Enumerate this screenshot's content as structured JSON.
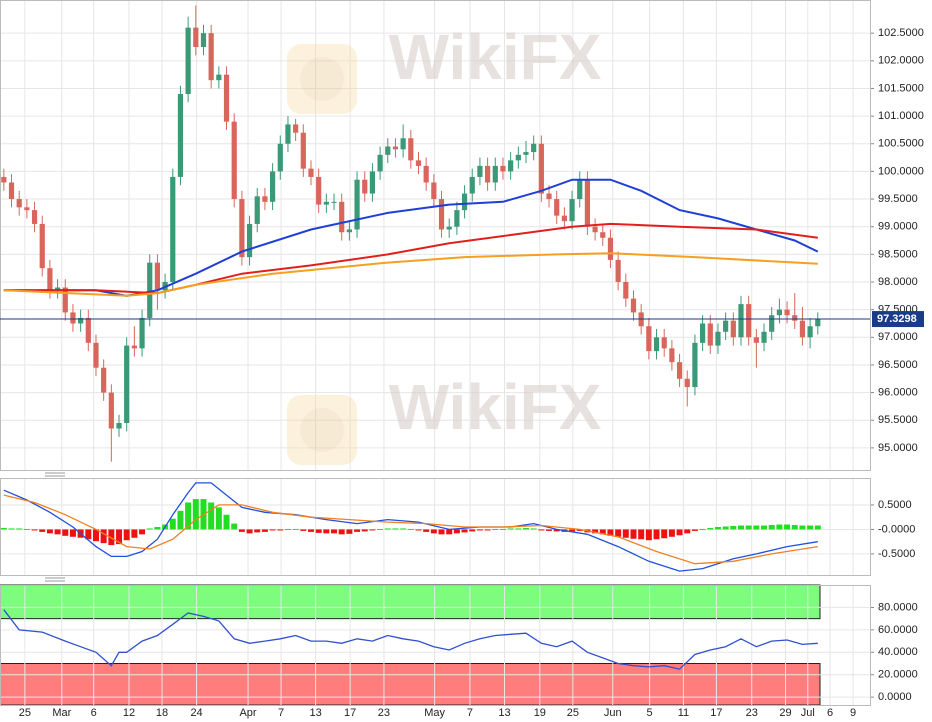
{
  "watermark": "WikiFX",
  "chart_data": [
    {
      "type": "candlestick",
      "xlim": [
        -0.5,
        112.8
      ],
      "ylim": [
        94.6,
        103.1
      ],
      "yticks": [
        {
          "value": 95,
          "label": "95.0000"
        },
        {
          "value": 95.5,
          "label": "95.5000"
        },
        {
          "value": 96,
          "label": "96.0000"
        },
        {
          "value": 96.5,
          "label": "96.5000"
        },
        {
          "value": 97,
          "label": "97.0000"
        },
        {
          "value": 97.5,
          "label": "97.5000"
        },
        {
          "value": 98,
          "label": "98.0000"
        },
        {
          "value": 98.5,
          "label": "98.5000"
        },
        {
          "value": 99,
          "label": "99.0000"
        },
        {
          "value": 99.5,
          "label": "99.5000"
        },
        {
          "value": 100,
          "label": "100.0000"
        },
        {
          "value": 100.5,
          "label": "100.5000"
        },
        {
          "value": 101,
          "label": "101.0000"
        },
        {
          "value": 101.5,
          "label": "101.5000"
        },
        {
          "value": 102,
          "label": "102.0000"
        },
        {
          "value": 102.5,
          "label": "102.5000"
        }
      ],
      "grid": true,
      "up_color": "#3a9a78",
      "down_color": "#d9665c",
      "open": [
        99.9,
        99.8,
        99.5,
        99.35,
        99.3,
        99.05,
        98.25,
        97.85,
        97.9,
        97.45,
        97.25,
        97.35,
        96.9,
        96.45,
        96.0,
        95.35,
        95.45,
        96.85,
        96.8,
        97.35,
        98.35,
        97.85,
        98.0,
        99.9,
        101.4,
        102.6,
        102.25,
        102.5,
        101.65,
        101.75,
        100.9,
        99.5,
        98.45,
        99.05,
        99.55,
        99.45,
        100.0,
        100.5,
        100.85,
        100.7,
        100.05,
        99.9,
        99.4,
        99.45,
        99.45,
        98.9,
        98.95,
        99.85,
        99.6,
        100.0,
        100.3,
        100.45,
        100.4,
        100.6,
        100.2,
        100.1,
        99.8,
        99.5,
        98.95,
        99.0,
        99.3,
        99.6,
        99.9,
        100.1,
        99.8,
        100.1,
        100.0,
        100.2,
        100.3,
        100.35,
        100.5,
        99.6,
        99.5,
        99.2,
        99.1,
        99.5,
        99.85,
        99.0,
        98.9,
        98.8,
        98.4,
        98.0,
        97.7,
        97.45,
        97.2,
        96.75,
        97.0,
        96.8,
        96.55,
        96.25,
        96.1,
        96.9,
        97.25,
        96.85,
        97.1,
        97.3,
        97.0,
        97.6,
        97.0,
        96.9,
        97.1,
        97.4,
        97.5,
        97.4,
        97.3,
        97.0,
        97.2
      ],
      "high": [
        100.05,
        99.95,
        99.65,
        99.5,
        99.45,
        99.2,
        98.4,
        98.05,
        98.05,
        97.6,
        97.5,
        97.5,
        97.05,
        96.6,
        96.15,
        95.6,
        97.0,
        97.2,
        97.5,
        98.5,
        98.5,
        98.15,
        100.05,
        101.55,
        102.8,
        103.0,
        102.65,
        102.65,
        101.9,
        101.9,
        101.05,
        99.65,
        99.2,
        99.7,
        99.7,
        100.15,
        100.65,
        101.0,
        100.95,
        100.85,
        100.2,
        100.05,
        99.6,
        99.6,
        99.6,
        99.1,
        100.0,
        100.0,
        100.15,
        100.45,
        100.6,
        100.6,
        100.85,
        100.75,
        100.35,
        100.25,
        99.95,
        99.65,
        99.15,
        99.45,
        99.75,
        100.05,
        100.25,
        100.25,
        100.25,
        100.25,
        100.35,
        100.45,
        100.55,
        100.65,
        100.65,
        99.75,
        99.65,
        99.35,
        99.65,
        100.0,
        100.0,
        99.15,
        99.05,
        98.95,
        98.55,
        98.15,
        97.85,
        97.6,
        97.35,
        97.15,
        97.15,
        96.95,
        96.7,
        96.4,
        97.05,
        97.4,
        97.4,
        97.25,
        97.45,
        97.45,
        97.75,
        97.75,
        97.15,
        97.25,
        97.55,
        97.7,
        97.65,
        97.8,
        97.55,
        97.35,
        97.45
      ],
      "low": [
        99.65,
        99.35,
        99.2,
        99.15,
        98.9,
        98.1,
        97.7,
        97.7,
        97.3,
        97.1,
        97.1,
        96.75,
        96.3,
        95.85,
        94.75,
        95.2,
        95.3,
        96.65,
        96.65,
        97.2,
        97.5,
        97.7,
        97.85,
        99.75,
        101.25,
        102.1,
        102.1,
        101.5,
        101.5,
        100.75,
        99.35,
        98.3,
        98.3,
        98.9,
        99.3,
        99.3,
        99.85,
        100.35,
        100.55,
        99.9,
        99.75,
        99.25,
        99.25,
        99.3,
        98.75,
        98.75,
        98.8,
        99.45,
        99.45,
        99.85,
        100.15,
        100.25,
        100.25,
        100.05,
        99.95,
        99.65,
        99.35,
        98.8,
        98.8,
        98.85,
        99.15,
        99.45,
        99.75,
        99.65,
        99.65,
        99.85,
        99.85,
        100.05,
        100.15,
        100.2,
        99.45,
        99.35,
        99.05,
        98.95,
        98.95,
        99.35,
        98.85,
        98.75,
        98.65,
        98.25,
        97.85,
        97.55,
        97.3,
        97.05,
        96.6,
        96.6,
        96.65,
        96.4,
        96.1,
        95.75,
        95.95,
        96.75,
        96.7,
        96.7,
        96.95,
        96.85,
        96.85,
        96.85,
        96.45,
        96.75,
        96.95,
        97.25,
        97.25,
        97.15,
        96.85,
        96.8,
        97.05
      ],
      "close": [
        99.8,
        99.5,
        99.35,
        99.3,
        99.05,
        98.25,
        97.85,
        97.9,
        97.45,
        97.25,
        97.35,
        96.9,
        96.45,
        96.0,
        95.35,
        95.45,
        96.85,
        96.8,
        97.35,
        98.35,
        97.85,
        98.0,
        99.9,
        101.4,
        102.6,
        102.25,
        102.5,
        101.65,
        101.75,
        100.9,
        99.5,
        98.45,
        99.05,
        99.55,
        99.45,
        100.0,
        100.5,
        100.85,
        100.7,
        100.05,
        99.9,
        99.4,
        99.45,
        99.45,
        98.9,
        98.95,
        99.85,
        99.6,
        100.0,
        100.3,
        100.45,
        100.4,
        100.6,
        100.2,
        100.1,
        99.8,
        99.5,
        98.95,
        99.0,
        99.3,
        99.6,
        99.9,
        100.1,
        99.8,
        100.1,
        100.0,
        100.2,
        100.3,
        100.35,
        100.5,
        99.6,
        99.5,
        99.2,
        99.1,
        99.5,
        99.85,
        99.0,
        98.9,
        98.8,
        98.4,
        98.0,
        97.7,
        97.45,
        97.2,
        96.75,
        97.0,
        96.8,
        96.55,
        96.25,
        96.1,
        96.9,
        97.25,
        96.85,
        97.1,
        97.3,
        97.0,
        97.6,
        97.0,
        96.9,
        97.1,
        97.4,
        97.5,
        97.4,
        97.3,
        97.0,
        97.2,
        97.33
      ],
      "lines": [
        {
          "color": "#1f3fd6",
          "x": [
            0,
            12,
            16,
            20,
            25,
            31,
            40,
            50,
            58,
            65,
            70,
            74,
            79,
            83,
            88,
            93,
            98,
            103,
            106
          ],
          "values": [
            97.85,
            97.85,
            97.75,
            97.85,
            98.15,
            98.55,
            98.95,
            99.25,
            99.4,
            99.45,
            99.65,
            99.85,
            99.85,
            99.65,
            99.3,
            99.15,
            98.95,
            98.75,
            98.55
          ]
        },
        {
          "color": "#e0201c",
          "x": [
            0,
            12,
            20,
            25,
            31,
            40,
            50,
            58,
            66,
            74,
            79,
            88,
            98,
            106
          ],
          "values": [
            97.85,
            97.85,
            97.8,
            97.95,
            98.15,
            98.3,
            98.5,
            98.7,
            98.85,
            99.0,
            99.05,
            99.0,
            98.95,
            98.8
          ]
        },
        {
          "color": "#f5a020",
          "x": [
            0,
            16,
            20,
            25,
            35,
            50,
            60,
            72,
            79,
            90,
            106
          ],
          "values": [
            97.85,
            97.75,
            97.8,
            97.95,
            98.15,
            98.35,
            98.45,
            98.5,
            98.52,
            98.45,
            98.33
          ]
        }
      ],
      "last_price": 97.3298,
      "last_price_color": "#1a3a8a"
    },
    {
      "type": "macd",
      "xlim": [
        -0.5,
        112.8
      ],
      "ylim": [
        -0.93,
        1.05
      ],
      "yticks": [
        {
          "value": 0.5,
          "label": "0.5000"
        },
        {
          "value": 0,
          "label": "-0.0000"
        },
        {
          "value": -0.5,
          "label": "-0.5000"
        }
      ],
      "up_color": "#22dd22",
      "down_color": "#ee1111",
      "histogram": [
        0.03,
        0.02,
        0.02,
        0.01,
        -0.02,
        -0.05,
        -0.08,
        -0.1,
        -0.13,
        -0.15,
        -0.17,
        -0.2,
        -0.24,
        -0.28,
        -0.32,
        -0.3,
        -0.22,
        -0.17,
        -0.1,
        0.02,
        0.05,
        0.1,
        0.22,
        0.38,
        0.55,
        0.62,
        0.62,
        0.55,
        0.45,
        0.3,
        0.12,
        -0.05,
        -0.08,
        -0.06,
        -0.05,
        -0.02,
        -0.02,
        0.01,
        0.01,
        -0.03,
        -0.05,
        -0.07,
        -0.08,
        -0.08,
        -0.1,
        -0.09,
        -0.05,
        -0.04,
        -0.02,
        0.01,
        0.02,
        0.02,
        0.02,
        0.01,
        -0.02,
        -0.05,
        -0.08,
        -0.1,
        -0.1,
        -0.08,
        -0.06,
        -0.04,
        -0.02,
        -0.01,
        0.01,
        0.01,
        0.02,
        0.02,
        0.03,
        0.02,
        -0.02,
        -0.03,
        -0.04,
        -0.05,
        -0.04,
        -0.03,
        -0.06,
        -0.08,
        -0.1,
        -0.13,
        -0.15,
        -0.17,
        -0.19,
        -0.2,
        -0.22,
        -0.2,
        -0.18,
        -0.15,
        -0.12,
        -0.08,
        -0.03,
        0.01,
        0.03,
        0.05,
        0.06,
        0.07,
        0.08,
        0.08,
        0.08,
        0.08,
        0.09,
        0.1,
        0.1,
        0.09,
        0.08,
        0.08,
        0.08
      ],
      "lines": [
        {
          "color": "#2050e0",
          "x": [
            0,
            3,
            6,
            9,
            12,
            14,
            16,
            18,
            20,
            22,
            24,
            25,
            27,
            29,
            31,
            34,
            38,
            42,
            46,
            50,
            54,
            58,
            62,
            66,
            69,
            72,
            76,
            80,
            84,
            88,
            91,
            95,
            98,
            102,
            106
          ],
          "values": [
            0.8,
            0.6,
            0.35,
            0.05,
            -0.35,
            -0.55,
            -0.55,
            -0.45,
            -0.2,
            0.3,
            0.75,
            0.95,
            0.95,
            0.7,
            0.45,
            0.35,
            0.3,
            0.2,
            0.12,
            0.2,
            0.15,
            0.0,
            0.05,
            0.05,
            0.12,
            0.0,
            -0.1,
            -0.35,
            -0.65,
            -0.85,
            -0.8,
            -0.6,
            -0.5,
            -0.35,
            -0.25
          ]
        },
        {
          "color": "#f08020",
          "x": [
            0,
            4,
            8,
            12,
            16,
            19,
            22,
            25,
            28,
            31,
            35,
            40,
            45,
            50,
            55,
            60,
            65,
            70,
            75,
            80,
            85,
            90,
            95,
            100,
            106
          ],
          "values": [
            0.7,
            0.55,
            0.3,
            0.0,
            -0.35,
            -0.4,
            -0.2,
            0.2,
            0.5,
            0.5,
            0.35,
            0.25,
            0.2,
            0.15,
            0.12,
            0.05,
            0.05,
            0.08,
            0.0,
            -0.15,
            -0.45,
            -0.7,
            -0.65,
            -0.5,
            -0.35
          ]
        }
      ]
    },
    {
      "type": "rsi",
      "xlim": [
        -0.5,
        112.8
      ],
      "ylim": [
        -7,
        100
      ],
      "yticks": [
        {
          "value": 0,
          "label": "0.0000"
        },
        {
          "value": 20,
          "label": "20.0000"
        },
        {
          "value": 40,
          "label": "40.0000"
        },
        {
          "value": 60,
          "label": "60.0000"
        },
        {
          "value": 80,
          "label": "80.0000"
        }
      ],
      "xticks": [
        {
          "value": 2.74,
          "label": "25"
        },
        {
          "value": 7.55,
          "label": "Mar"
        },
        {
          "value": 11.7,
          "label": "6"
        },
        {
          "value": 16.3,
          "label": "12"
        },
        {
          "value": 20.6,
          "label": "18"
        },
        {
          "value": 25.1,
          "label": "24"
        },
        {
          "value": 31.8,
          "label": "Apr"
        },
        {
          "value": 36.1,
          "label": "7"
        },
        {
          "value": 40.6,
          "label": "13"
        },
        {
          "value": 45.1,
          "label": "17"
        },
        {
          "value": 49.5,
          "label": "23"
        },
        {
          "value": 56.1,
          "label": "May"
        },
        {
          "value": 60.7,
          "label": "7"
        },
        {
          "value": 65.2,
          "label": "13"
        },
        {
          "value": 69.8,
          "label": "19"
        },
        {
          "value": 74.1,
          "label": "25"
        },
        {
          "value": 79.3,
          "label": "Jun"
        },
        {
          "value": 84.1,
          "label": "5"
        },
        {
          "value": 88.5,
          "label": "11"
        },
        {
          "value": 92.8,
          "label": "17"
        },
        {
          "value": 97.4,
          "label": "23"
        },
        {
          "value": 101.8,
          "label": "29"
        },
        {
          "value": 104.7,
          "label": "Jul"
        },
        {
          "value": 107.6,
          "label": "6"
        },
        {
          "value": 110.6,
          "label": "9"
        }
      ],
      "bands": [
        {
          "from": 70,
          "to": 100,
          "color": "#7dfc7d"
        },
        {
          "from": -7,
          "to": 30,
          "color": "#ff7d7d"
        }
      ],
      "lines": [
        {
          "color": "#3050d0",
          "x": [
            0,
            2,
            5,
            8,
            10,
            12,
            14,
            15,
            16,
            18,
            20,
            22,
            24,
            26,
            28,
            30,
            32,
            34,
            36,
            38,
            40,
            42,
            44,
            46,
            48,
            50,
            52,
            54,
            56,
            58,
            60,
            62,
            64,
            66,
            68,
            70,
            72,
            74,
            76,
            78,
            80,
            82,
            84,
            86,
            88,
            90,
            92,
            94,
            96,
            98,
            100,
            102,
            104,
            106
          ],
          "values": [
            78,
            60,
            58,
            50,
            45,
            40,
            28,
            40,
            40,
            50,
            55,
            65,
            75,
            72,
            68,
            52,
            48,
            50,
            52,
            55,
            50,
            50,
            48,
            52,
            50,
            55,
            52,
            50,
            45,
            42,
            48,
            52,
            55,
            56,
            57,
            48,
            45,
            50,
            40,
            35,
            30,
            28,
            27,
            28,
            25,
            38,
            42,
            45,
            52,
            45,
            50,
            51,
            47,
            48
          ]
        }
      ]
    }
  ]
}
